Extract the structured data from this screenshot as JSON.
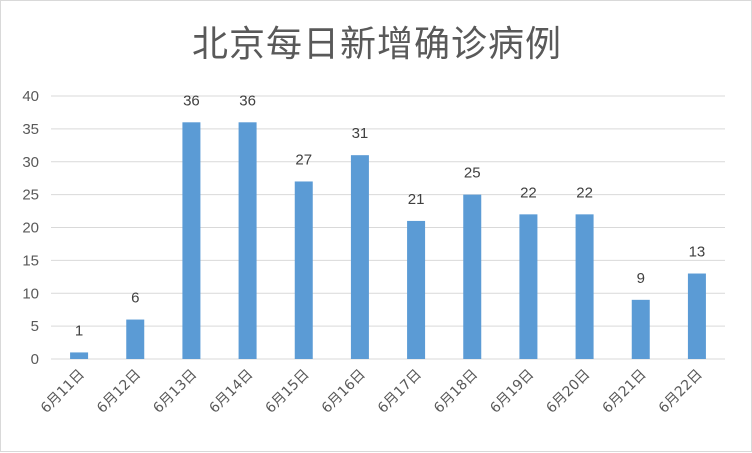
{
  "chart_data": {
    "type": "bar",
    "title": "北京每日新增确诊病例",
    "xlabel": "",
    "ylabel": "",
    "categories": [
      "6月11日",
      "6月12日",
      "6月13日",
      "6月14日",
      "6月15日",
      "6月16日",
      "6月17日",
      "6月18日",
      "6月19日",
      "6月20日",
      "6月21日",
      "6月22日"
    ],
    "values": [
      1,
      6,
      36,
      36,
      27,
      31,
      21,
      25,
      22,
      22,
      9,
      13
    ],
    "ylim": [
      0,
      40
    ],
    "yticks": [
      0,
      5,
      10,
      15,
      20,
      25,
      30,
      35,
      40
    ],
    "grid": true,
    "legend": "none",
    "bar_color": "#5b9bd5",
    "grid_color": "#d9d9d9"
  }
}
